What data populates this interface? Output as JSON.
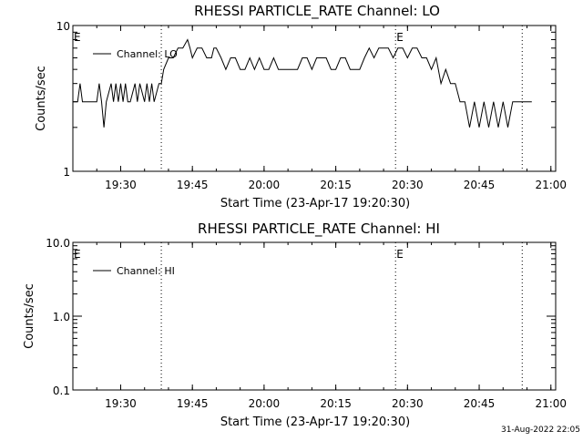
{
  "chart_data": [
    {
      "type": "line",
      "title": "RHESSI PARTICLE_RATE Channel: LO",
      "xlabel": "Start Time (23-Apr-17 19:20:30)",
      "ylabel": "Counts/sec",
      "x_tick_labels": [
        "19:30",
        "19:45",
        "20:00",
        "20:15",
        "20:30",
        "20:45",
        "21:00"
      ],
      "y_tick_labels": [
        "1",
        "10"
      ],
      "y_scale": "log",
      "ylim": [
        1,
        10
      ],
      "xlim_minutes_after_1920": [
        0,
        101
      ],
      "grid": false,
      "legend_position": "top-left",
      "series": [
        {
          "name": "Channel: LO",
          "x_minutes_after_1920": [
            0,
            1,
            1.5,
            2,
            3,
            4,
            5,
            5.5,
            6,
            6.5,
            7,
            8,
            8.5,
            9,
            9.5,
            10,
            10.5,
            11,
            11.5,
            12,
            13,
            13.5,
            14,
            15,
            15.5,
            16,
            16.5,
            17,
            18,
            18.5,
            19,
            20,
            21,
            22,
            23,
            24,
            24.5,
            25,
            26,
            27,
            28,
            29,
            29.5,
            30,
            31,
            32,
            33,
            34,
            35,
            36,
            37,
            38,
            39,
            40,
            41,
            42,
            43,
            44,
            45,
            46,
            47,
            48,
            49,
            50,
            51,
            52,
            53,
            54,
            55,
            56,
            57,
            58,
            59,
            60,
            61,
            62,
            63,
            64,
            65,
            66,
            67,
            68,
            69,
            70,
            71,
            72,
            73,
            74,
            75,
            76,
            77,
            78,
            79,
            80,
            81,
            82,
            83,
            84,
            85,
            86,
            87,
            88,
            89,
            90,
            91,
            92,
            93,
            94,
            95,
            96
          ],
          "values": [
            3,
            3,
            4,
            3,
            3,
            3,
            3,
            4,
            3,
            2,
            3,
            4,
            3,
            4,
            3,
            4,
            3,
            4,
            3,
            3,
            4,
            3,
            4,
            3,
            4,
            3,
            4,
            3,
            4,
            4,
            5,
            6,
            6,
            7,
            7,
            8,
            7,
            6,
            7,
            7,
            6,
            6,
            7,
            7,
            6,
            5,
            6,
            6,
            5,
            5,
            6,
            5,
            6,
            5,
            5,
            6,
            5,
            5,
            5,
            5,
            5,
            6,
            6,
            5,
            6,
            6,
            6,
            5,
            5,
            6,
            6,
            5,
            5,
            5,
            6,
            7,
            6,
            7,
            7,
            7,
            6,
            7,
            7,
            6,
            7,
            7,
            6,
            6,
            5,
            6,
            4,
            5,
            4,
            4,
            3,
            3,
            2,
            3,
            2,
            3,
            2,
            3,
            2,
            3,
            2,
            3,
            3,
            3,
            3,
            3,
            3
          ]
        }
      ]
    },
    {
      "type": "line",
      "title": "RHESSI PARTICLE_RATE Channel: HI",
      "xlabel": "Start Time (23-Apr-17 19:20:30)",
      "ylabel": "Counts/sec",
      "x_tick_labels": [
        "19:30",
        "19:45",
        "20:00",
        "20:15",
        "20:30",
        "20:45",
        "21:00"
      ],
      "y_tick_labels": [
        "0.1",
        "1.0",
        "10.0"
      ],
      "y_scale": "log",
      "ylim": [
        0.1,
        10
      ],
      "grid": false,
      "legend_position": "top-left",
      "series": [
        {
          "name": "Channel: HI",
          "x_minutes_after_1920": [],
          "values": []
        }
      ]
    }
  ],
  "markers": {
    "eclipse_label": "E",
    "vertical_lines_minutes_after_1920": [
      18.5,
      67.5,
      94
    ]
  },
  "footer": {
    "timestamp": "31-Aug-2022 22:05"
  }
}
